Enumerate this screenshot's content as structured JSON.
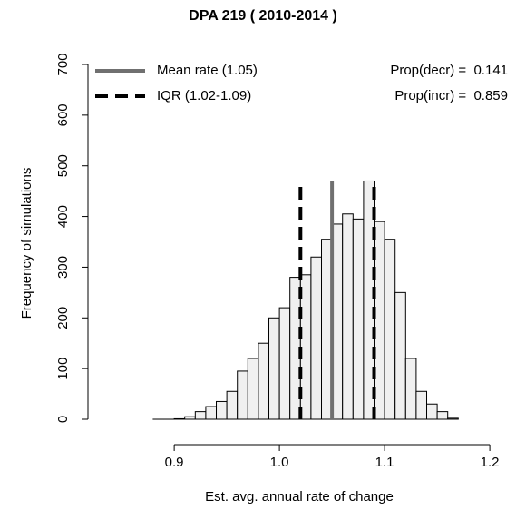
{
  "chart_data": {
    "type": "histogram",
    "title": "DPA  219 ( 2010-2014 )",
    "x_label": "Est. avg. annual rate of change",
    "y_label": "Frequency of simulations",
    "bins": [
      0.88,
      0.89,
      0.9,
      0.91,
      0.92,
      0.93,
      0.94,
      0.95,
      0.96,
      0.97,
      0.98,
      0.99,
      1.0,
      1.01,
      1.02,
      1.03,
      1.04,
      1.05,
      1.06,
      1.07,
      1.08,
      1.09,
      1.1,
      1.11,
      1.12,
      1.13,
      1.14,
      1.15,
      1.16,
      1.17
    ],
    "values": [
      0,
      0,
      1,
      5,
      15,
      25,
      35,
      55,
      95,
      120,
      150,
      200,
      220,
      280,
      285,
      320,
      355,
      385,
      405,
      395,
      470,
      390,
      355,
      250,
      120,
      55,
      30,
      15,
      2
    ],
    "color": "#f0f0f0",
    "xlim": [
      0.818,
      1.22
    ],
    "xticks": [
      0.9,
      {
        "value": 1.0,
        "label": "1.0"
      },
      1.1,
      1.2
    ],
    "ylim": [
      0,
      700
    ],
    "yticks": [
      0,
      100,
      200,
      300,
      400,
      500,
      600,
      700
    ],
    "lines": [
      {
        "name": "Mean rate (1.05)",
        "x": [
          1.05
        ],
        "color": "#707070",
        "dashed": false
      },
      {
        "name": "IQR (1.02-1.09)",
        "x": [
          1.02,
          1.09
        ],
        "color": "#000000",
        "dashed": true
      }
    ],
    "annotations": [
      "Prop(decr) =  0.141",
      "Prop(incr) =  0.859"
    ]
  }
}
